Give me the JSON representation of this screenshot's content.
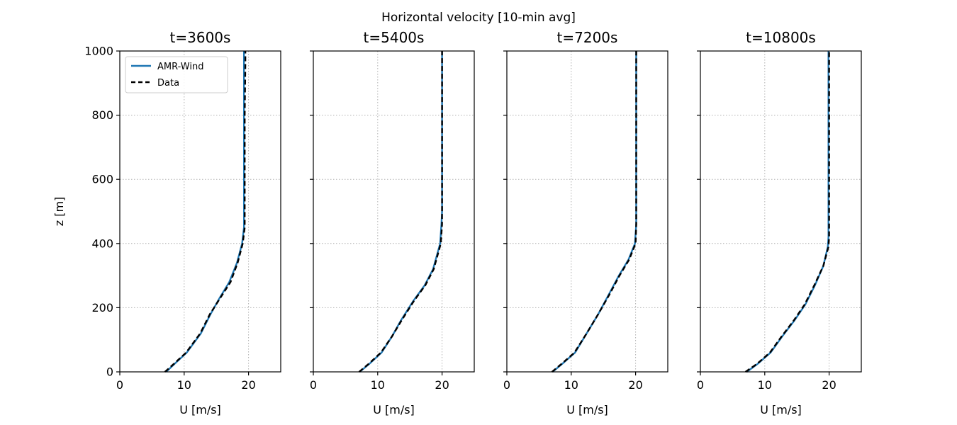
{
  "figure": {
    "title": "Horizontal velocity [10-min avg]"
  },
  "colors": {
    "amr_wind": "#1f77b4",
    "data": "#000000",
    "grid": "#b0b0b0"
  },
  "legend": {
    "placement": "upper-left of first panel",
    "entries": [
      {
        "label": "AMR-Wind",
        "style": "solid",
        "color": "#1f77b4"
      },
      {
        "label": "Data",
        "style": "dashed",
        "color": "#000000"
      }
    ]
  },
  "chart_data": [
    {
      "type": "line",
      "title": "t=3600s",
      "xlabel": "U [m/s]",
      "ylabel": "z [m]",
      "xlim": [
        0,
        25
      ],
      "ylim": [
        0,
        1000
      ],
      "xticks": [
        0,
        10,
        20
      ],
      "yticks": [
        0,
        200,
        400,
        600,
        800,
        1000
      ],
      "grid": true,
      "series": [
        {
          "name": "AMR-Wind",
          "style": "solid",
          "x": [
            7.2,
            8.5,
            10.4,
            12.6,
            14.1,
            15.5,
            17.0,
            18.2,
            19.0,
            19.3,
            19.3,
            19.3,
            19.3,
            19.3,
            19.3
          ],
          "y": [
            0,
            25,
            60,
            120,
            180,
            230,
            280,
            340,
            400,
            450,
            500,
            600,
            800,
            960,
            1000
          ]
        },
        {
          "name": "Data",
          "style": "dashed",
          "x": [
            7.0,
            8.4,
            10.3,
            12.5,
            14.0,
            15.6,
            17.2,
            18.3,
            19.1,
            19.4,
            19.4,
            19.4,
            19.4,
            19.5,
            19.5
          ],
          "y": [
            0,
            25,
            60,
            120,
            180,
            230,
            280,
            340,
            400,
            450,
            500,
            600,
            800,
            960,
            1000
          ]
        }
      ]
    },
    {
      "type": "line",
      "title": "t=5400s",
      "xlabel": "U [m/s]",
      "ylabel": "",
      "xlim": [
        0,
        25
      ],
      "ylim": [
        0,
        1000
      ],
      "xticks": [
        0,
        10,
        20
      ],
      "yticks": [
        0,
        200,
        400,
        600,
        800,
        1000
      ],
      "grid": true,
      "series": [
        {
          "name": "AMR-Wind",
          "style": "solid",
          "x": [
            7.2,
            8.7,
            10.6,
            12.2,
            13.6,
            15.5,
            17.3,
            18.6,
            19.7,
            19.9,
            20.0,
            20.0,
            20.0,
            20.0
          ],
          "y": [
            0,
            25,
            60,
            110,
            160,
            220,
            270,
            320,
            400,
            460,
            500,
            600,
            800,
            1000
          ]
        },
        {
          "name": "Data",
          "style": "dashed",
          "x": [
            7.1,
            8.6,
            10.5,
            12.2,
            13.7,
            15.6,
            17.4,
            18.7,
            19.8,
            20.0,
            20.0,
            20.0,
            20.0,
            20.0
          ],
          "y": [
            0,
            25,
            60,
            110,
            160,
            220,
            270,
            320,
            400,
            460,
            500,
            600,
            800,
            1000
          ]
        }
      ]
    },
    {
      "type": "line",
      "title": "t=7200s",
      "xlabel": "U [m/s]",
      "ylabel": "",
      "xlim": [
        0,
        25
      ],
      "ylim": [
        0,
        1000
      ],
      "xticks": [
        0,
        10,
        20
      ],
      "yticks": [
        0,
        200,
        400,
        600,
        800,
        1000
      ],
      "grid": true,
      "series": [
        {
          "name": "AMR-Wind",
          "style": "solid",
          "x": [
            7.1,
            8.6,
            10.6,
            12.4,
            14.2,
            15.8,
            17.4,
            18.9,
            19.9,
            20.1,
            20.1,
            20.1,
            20.1,
            20.1
          ],
          "y": [
            0,
            25,
            60,
            120,
            180,
            240,
            300,
            350,
            400,
            460,
            500,
            600,
            800,
            1000
          ]
        },
        {
          "name": "Data",
          "style": "dashed",
          "x": [
            7.0,
            8.5,
            10.5,
            12.4,
            14.2,
            15.9,
            17.5,
            19.0,
            20.0,
            20.1,
            20.1,
            20.1,
            20.1,
            20.1
          ],
          "y": [
            0,
            25,
            60,
            120,
            180,
            240,
            300,
            350,
            400,
            460,
            500,
            600,
            800,
            1000
          ]
        }
      ]
    },
    {
      "type": "line",
      "title": "t=10800s",
      "xlabel": "U [m/s]",
      "ylabel": "",
      "xlim": [
        0,
        25
      ],
      "ylim": [
        0,
        1000
      ],
      "xticks": [
        0,
        10,
        20
      ],
      "yticks": [
        0,
        200,
        400,
        600,
        800,
        1000
      ],
      "grid": true,
      "series": [
        {
          "name": "AMR-Wind",
          "style": "solid",
          "x": [
            7.2,
            8.9,
            10.9,
            12.7,
            14.6,
            16.3,
            17.8,
            19.1,
            19.8,
            19.9,
            19.9,
            19.9,
            19.9
          ],
          "y": [
            0,
            25,
            60,
            110,
            160,
            210,
            270,
            330,
            390,
            420,
            600,
            800,
            1000
          ]
        },
        {
          "name": "Data",
          "style": "dashed",
          "x": [
            7.0,
            8.8,
            10.8,
            12.6,
            14.5,
            16.2,
            17.7,
            19.1,
            19.9,
            20.0,
            20.0,
            20.0,
            20.0
          ],
          "y": [
            0,
            25,
            60,
            110,
            160,
            210,
            270,
            330,
            390,
            420,
            600,
            800,
            1000
          ]
        }
      ]
    }
  ]
}
